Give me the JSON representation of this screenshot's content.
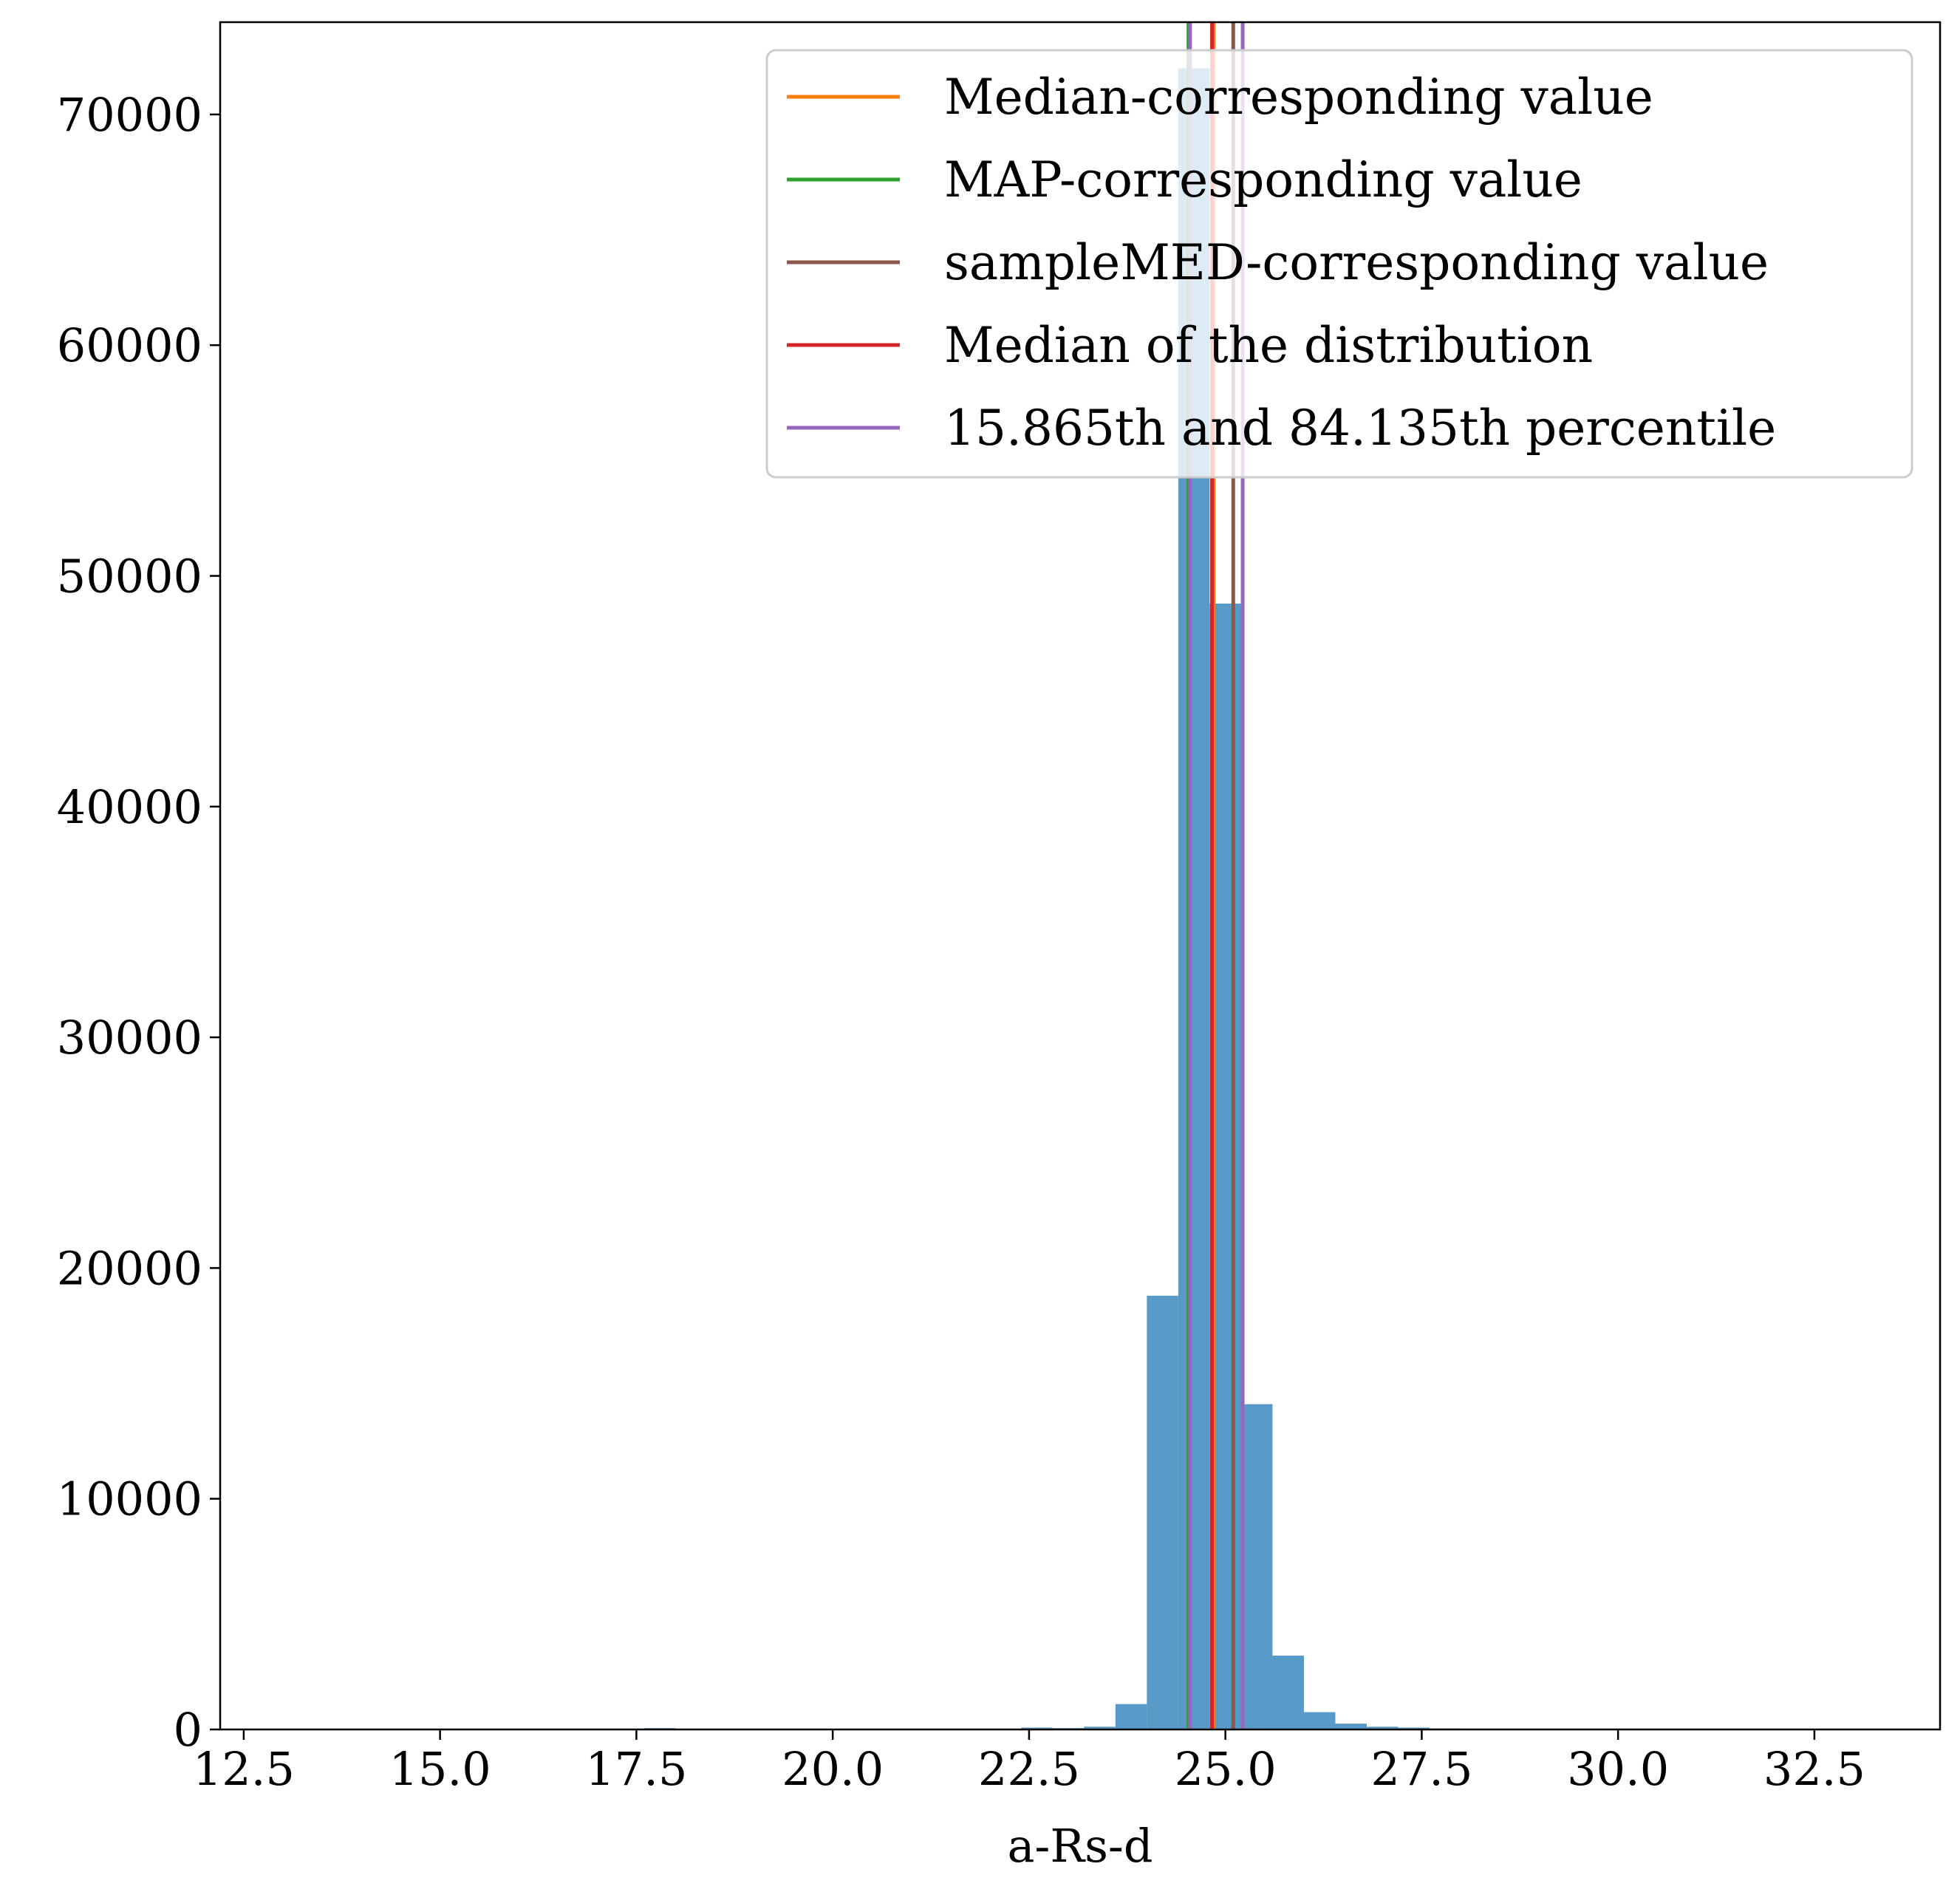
{
  "chart_data": {
    "type": "bar",
    "xlabel": "a-Rs-d",
    "ylabel": "",
    "title": "",
    "xlim": [
      12.2,
      34.1
    ],
    "ylim": [
      0,
      74000
    ],
    "xticks": [
      12.5,
      15.0,
      17.5,
      20.0,
      22.5,
      25.0,
      27.5,
      30.0,
      32.5
    ],
    "xtick_labels": [
      "12.5",
      "15.0",
      "17.5",
      "20.0",
      "22.5",
      "25.0",
      "27.5",
      "30.0",
      "32.5"
    ],
    "yticks": [
      0,
      10000,
      20000,
      30000,
      40000,
      50000,
      60000,
      70000
    ],
    "ytick_labels": [
      "0",
      "10000",
      "20000",
      "30000",
      "40000",
      "50000",
      "60000",
      "70000"
    ],
    "bar_color": "#5799c7",
    "bin_width": 0.4,
    "bins": [
      {
        "x0": 17.6,
        "count": 60
      },
      {
        "x0": 22.4,
        "count": 80
      },
      {
        "x0": 22.8,
        "count": 60
      },
      {
        "x0": 23.2,
        "count": 120
      },
      {
        "x0": 23.6,
        "count": 1100
      },
      {
        "x0": 24.0,
        "count": 18800
      },
      {
        "x0": 24.4,
        "count": 72000
      },
      {
        "x0": 24.8,
        "count": 48800
      },
      {
        "x0": 25.2,
        "count": 14100
      },
      {
        "x0": 25.6,
        "count": 3200
      },
      {
        "x0": 26.0,
        "count": 750
      },
      {
        "x0": 26.4,
        "count": 250
      },
      {
        "x0": 26.8,
        "count": 120
      },
      {
        "x0": 27.2,
        "count": 80
      },
      {
        "x0": 27.6,
        "count": 40
      }
    ],
    "vlines": [
      {
        "legend_index": 0,
        "x": 24.85,
        "color": "#ff7f0e"
      },
      {
        "legend_index": 1,
        "x": 24.53,
        "color": "#2ca02c"
      },
      {
        "legend_index": 2,
        "x": 25.1,
        "color": "#8c564b"
      },
      {
        "legend_index": 3,
        "x": 24.83,
        "color": "#d62728"
      },
      {
        "legend_index": 4,
        "x": 24.55,
        "color": "#9467bd"
      },
      {
        "legend_index": 4,
        "x": 25.22,
        "color": "#9467bd"
      }
    ],
    "legend": {
      "placement": "top-right",
      "entries": [
        {
          "label": "Median-corresponding value",
          "color": "#ff7f0e"
        },
        {
          "label": "MAP-corresponding value",
          "color": "#2ca02c"
        },
        {
          "label": "sampleMED-corresponding value",
          "color": "#8c564b"
        },
        {
          "label": "Median of the distribution",
          "color": "#d62728"
        },
        {
          "label": "15.865th and 84.135th percentile",
          "color": "#9467bd"
        }
      ]
    },
    "grid": false
  }
}
